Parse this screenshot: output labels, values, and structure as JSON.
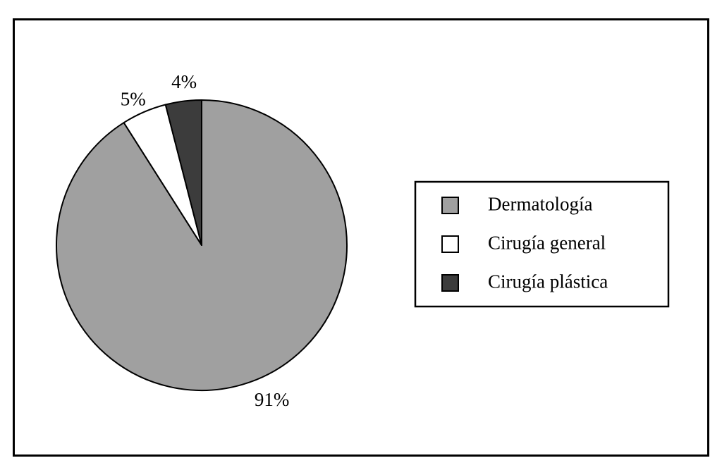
{
  "chart_data": {
    "type": "pie",
    "categories": [
      "Dermatología",
      "Cirugía general",
      "Cirugía plástica"
    ],
    "values": [
      91,
      5,
      4
    ],
    "value_labels": [
      "91%",
      "5%",
      "4%"
    ],
    "colors": [
      "#a0a0a0",
      "#ffffff",
      "#3c3c3c"
    ],
    "start_angle_deg": 0,
    "direction": "clockwise",
    "legend_placement": "right",
    "title": ""
  }
}
